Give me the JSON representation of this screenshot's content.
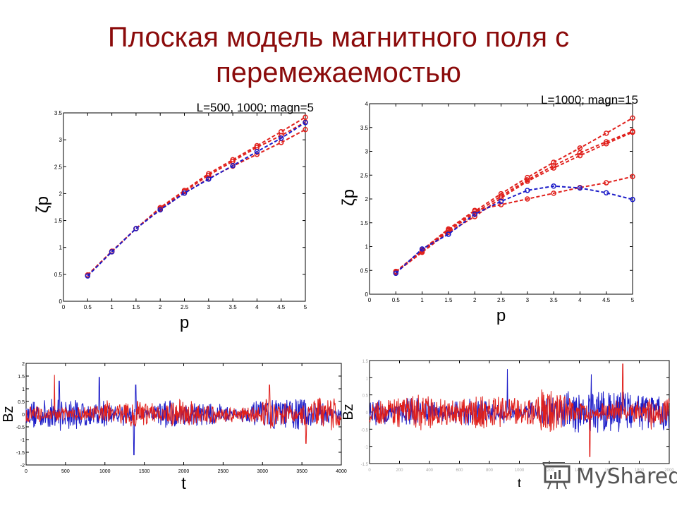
{
  "slide": {
    "title_line1": "Плоская модель магнитного поля  с",
    "title_line2": "перемежаемостью",
    "watermark": "MyShared"
  },
  "colors": {
    "title": "#8b0b0b",
    "red": "#e0201c",
    "blue": "#1b1bc8"
  },
  "chart_data": [
    {
      "type": "line",
      "title": "L=500, 1000; magn=5",
      "xlabel": "p",
      "ylabel": "ζp",
      "xlim": [
        0,
        5
      ],
      "ylim": [
        0,
        3.5
      ],
      "xticks": [
        "0",
        "0.5",
        "1",
        "1.5",
        "2",
        "2.5",
        "3",
        "3.5",
        "4",
        "4.5",
        "5"
      ],
      "yticks": [
        "0",
        "0.5",
        "1",
        "1.5",
        "2",
        "2.5",
        "3",
        "3.5"
      ],
      "x": [
        0.5,
        1,
        1.5,
        2,
        2.5,
        3,
        3.5,
        4,
        4.5,
        5
      ],
      "series": [
        {
          "name": "red-1",
          "color": "red",
          "values": [
            0.49,
            0.93,
            1.35,
            1.74,
            2.06,
            2.37,
            2.63,
            2.89,
            3.15,
            3.42
          ]
        },
        {
          "name": "red-2",
          "color": "red",
          "values": [
            0.48,
            0.92,
            1.35,
            1.72,
            2.04,
            2.34,
            2.6,
            2.86,
            3.08,
            3.33
          ]
        },
        {
          "name": "red-3",
          "color": "red",
          "values": [
            0.48,
            0.92,
            1.35,
            1.7,
            2.01,
            2.28,
            2.51,
            2.73,
            2.95,
            3.19
          ]
        },
        {
          "name": "blue",
          "color": "blue",
          "values": [
            0.47,
            0.92,
            1.35,
            1.7,
            2.01,
            2.27,
            2.52,
            2.78,
            3.03,
            3.32
          ]
        }
      ]
    },
    {
      "type": "line",
      "title": "L=1000; magn=15",
      "xlabel": "p",
      "ylabel": "ζp",
      "xlim": [
        0,
        5
      ],
      "ylim": [
        0,
        4
      ],
      "xticks": [
        "0",
        "0.5",
        "1",
        "1.5",
        "2",
        "2.5",
        "3",
        "3.5",
        "4",
        "4.5",
        "5"
      ],
      "yticks": [
        "0",
        "0.5",
        "1",
        "1.5",
        "2",
        "2.5",
        "3",
        "3.5",
        "4"
      ],
      "x": [
        0.5,
        1,
        1.5,
        2,
        2.5,
        3,
        3.5,
        4,
        4.5,
        5
      ],
      "series": [
        {
          "name": "red-1",
          "color": "red",
          "values": [
            0.48,
            0.92,
            1.35,
            1.74,
            2.11,
            2.45,
            2.77,
            3.07,
            3.38,
            3.7
          ]
        },
        {
          "name": "red-2",
          "color": "red",
          "values": [
            0.47,
            0.9,
            1.33,
            1.7,
            2.06,
            2.4,
            2.7,
            2.97,
            3.2,
            3.42
          ]
        },
        {
          "name": "red-3",
          "color": "red",
          "values": [
            0.46,
            0.88,
            1.3,
            1.63,
            2.02,
            2.37,
            2.65,
            2.91,
            3.16,
            3.4
          ]
        },
        {
          "name": "red-4",
          "color": "red",
          "values": [
            0.45,
            0.93,
            1.37,
            1.76,
            1.88,
            2.0,
            2.12,
            2.24,
            2.34,
            2.47
          ]
        },
        {
          "name": "blue",
          "color": "blue",
          "values": [
            0.44,
            0.95,
            1.26,
            1.68,
            1.95,
            2.18,
            2.27,
            2.23,
            2.13,
            1.99
          ]
        }
      ]
    },
    {
      "type": "line",
      "title": "",
      "xlabel": "t",
      "ylabel": "Bz",
      "xlim": [
        0,
        4000
      ],
      "ylim": [
        -2,
        2
      ],
      "xticks": [
        "0",
        "500",
        "1000",
        "1500",
        "2000",
        "2500",
        "3000",
        "3500",
        "4000"
      ],
      "yticks": [
        "-2",
        "-1.5",
        "-1",
        "-0.5",
        "0",
        "0.5",
        "1",
        "1.5",
        "2"
      ],
      "series": [
        {
          "name": "Bz blue",
          "color": "blue",
          "description": "noisy time series, amplitude ~±0.6 with spikes to 1.45 (t≈930) and -1.6 (t≈1370)"
        },
        {
          "name": "Bz red",
          "color": "red",
          "description": "noisy time series, amplitude ~±0.6 with spikes to 1.55 (t≈360) and -1.15 (t≈3550)"
        }
      ]
    },
    {
      "type": "line",
      "title": "",
      "xlabel": "t",
      "ylabel": "Bz",
      "xlim": [
        0,
        2000
      ],
      "ylim": [
        -1.5,
        1.5
      ],
      "xticks": [
        "0",
        "200",
        "400",
        "600",
        "800",
        "1000",
        "1200",
        "1400",
        "1600",
        "1800",
        "2000"
      ],
      "yticks": [
        "-1.5",
        "-1",
        "-0.5",
        "0",
        "0.5",
        "1",
        "1.5"
      ],
      "series": [
        {
          "name": "Bz blue",
          "color": "blue",
          "description": "noisy time series, amplitude ~±0.8 with spikes to 1.25 (t≈920) and 1.1 (t≈1480)"
        },
        {
          "name": "Bz red",
          "color": "red",
          "description": "noisy time series, amplitude ~±0.8 with spikes to 1.4 (t≈1690) and -1.3 (t≈1470)"
        }
      ]
    }
  ]
}
